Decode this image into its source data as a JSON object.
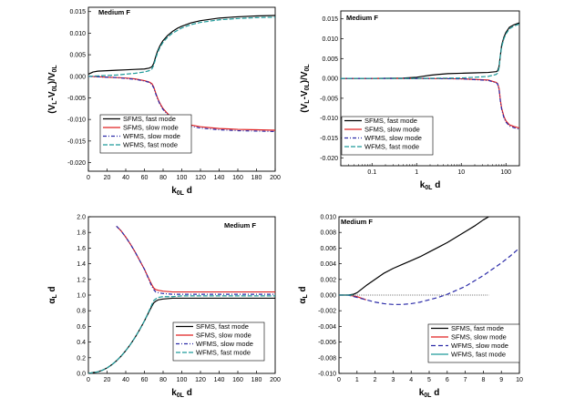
{
  "chart_data": [
    {
      "type": "line",
      "title": "Medium F",
      "ylabel": "(V_L-V_0L)/V_0L",
      "xlabel": "k_0L d",
      "xlim": [
        0,
        200
      ],
      "ylim": [
        -0.022,
        0.016
      ],
      "xscale": "linear",
      "xticks": [
        "0",
        "20",
        "40",
        "60",
        "80",
        "100",
        "120",
        "140",
        "160",
        "180",
        "200"
      ],
      "yticks": [
        "0.015",
        "0.010",
        "0.005",
        "0.000",
        "-0.005",
        "-0.010",
        "-0.015",
        "-0.020"
      ],
      "legend_position": "bottom-right",
      "series": [
        {
          "name": "SFMS, fast mode",
          "color": "#000000",
          "dash": "solid",
          "x": [
            0,
            5,
            10,
            20,
            30,
            40,
            50,
            60,
            65,
            68,
            70,
            72,
            74,
            76,
            78,
            80,
            85,
            90,
            95,
            100,
            110,
            120,
            140,
            160,
            180,
            200
          ],
          "y": [
            0.0005,
            0.001,
            0.0012,
            0.0013,
            0.0014,
            0.0015,
            0.0016,
            0.0017,
            0.0019,
            0.0022,
            0.003,
            0.0045,
            0.0058,
            0.0068,
            0.0076,
            0.0083,
            0.0095,
            0.0104,
            0.0111,
            0.0116,
            0.0124,
            0.0129,
            0.0135,
            0.0138,
            0.014,
            0.0141
          ]
        },
        {
          "name": "SFMS, slow mode",
          "color": "#e02020",
          "dash": "solid",
          "x": [
            0,
            10,
            20,
            30,
            40,
            50,
            60,
            65,
            68,
            70,
            72,
            74,
            76,
            78,
            80,
            85,
            90,
            100,
            110,
            120,
            140,
            160,
            180,
            200
          ],
          "y": [
            0.0,
            -0.0001,
            -0.0002,
            -0.0003,
            -0.0004,
            -0.0006,
            -0.001,
            -0.0013,
            -0.0017,
            -0.0025,
            -0.0038,
            -0.005,
            -0.006,
            -0.0068,
            -0.0075,
            -0.0087,
            -0.0096,
            -0.0107,
            -0.0113,
            -0.0117,
            -0.0121,
            -0.0123,
            -0.0124,
            -0.0125
          ]
        },
        {
          "name": "WFMS, slow mode",
          "color": "#2b2ba8",
          "dash": "4,2,1,2",
          "x": [
            0,
            10,
            20,
            30,
            40,
            50,
            60,
            65,
            68,
            70,
            72,
            74,
            76,
            78,
            80,
            85,
            90,
            100,
            110,
            120,
            140,
            160,
            180,
            200
          ],
          "y": [
            0.0,
            -0.0001,
            -0.0002,
            -0.0003,
            -0.0005,
            -0.0007,
            -0.0011,
            -0.0014,
            -0.0019,
            -0.0027,
            -0.004,
            -0.0052,
            -0.0062,
            -0.007,
            -0.0077,
            -0.0089,
            -0.0099,
            -0.011,
            -0.0116,
            -0.012,
            -0.0124,
            -0.0126,
            -0.0127,
            -0.0128
          ]
        },
        {
          "name": "WFMS, fast mode",
          "color": "#1f9a9a",
          "dash": "5,2",
          "x": [
            0,
            10,
            20,
            30,
            40,
            50,
            60,
            65,
            68,
            70,
            72,
            74,
            76,
            78,
            80,
            85,
            90,
            100,
            110,
            120,
            140,
            160,
            180,
            200
          ],
          "y": [
            0.0,
            0.0001,
            0.0002,
            0.0003,
            0.0005,
            0.0007,
            0.001,
            0.0013,
            0.0017,
            0.0026,
            0.0041,
            0.0054,
            0.0064,
            0.0072,
            0.0079,
            0.0091,
            0.01,
            0.0112,
            0.012,
            0.0125,
            0.0131,
            0.0134,
            0.0136,
            0.0137
          ]
        }
      ]
    },
    {
      "type": "line",
      "title": "Medium F",
      "ylabel": "(V_L-V_0L)/V_0L",
      "xlabel": "k_0L d",
      "xlim": [
        0.02,
        200
      ],
      "ylim": [
        -0.022,
        0.017
      ],
      "xscale": "log",
      "xticks": [
        "0.1",
        "1",
        "10",
        "100"
      ],
      "yticks": [
        "0.015",
        "0.010",
        "0.005",
        "0.000",
        "-0.005",
        "-0.010",
        "-0.015",
        "-0.020"
      ],
      "legend_position": "bottom-left",
      "series": [
        {
          "name": "SFMS, fast mode",
          "color": "#000000",
          "dash": "solid",
          "x": [
            0.02,
            0.1,
            0.5,
            1,
            2,
            3,
            5,
            10,
            20,
            40,
            60,
            65,
            70,
            75,
            80,
            90,
            100,
            120,
            150,
            200
          ],
          "y": [
            0.0,
            0.0,
            0.0001,
            0.0003,
            0.0008,
            0.001,
            0.0012,
            0.0013,
            0.0014,
            0.0015,
            0.0017,
            0.0019,
            0.003,
            0.0058,
            0.0083,
            0.0104,
            0.0116,
            0.0129,
            0.0135,
            0.014
          ]
        },
        {
          "name": "SFMS, slow mode",
          "color": "#e02020",
          "dash": "solid",
          "x": [
            0.02,
            0.1,
            1,
            10,
            40,
            60,
            65,
            70,
            75,
            80,
            90,
            100,
            120,
            150,
            200
          ],
          "y": [
            0.0,
            0.0,
            0.0,
            -0.0001,
            -0.0004,
            -0.001,
            -0.0013,
            -0.0025,
            -0.0055,
            -0.0075,
            -0.0096,
            -0.0107,
            -0.0117,
            -0.0121,
            -0.0125
          ]
        },
        {
          "name": "WFMS, slow mode",
          "color": "#2b2ba8",
          "dash": "4,2,1,2",
          "x": [
            0.02,
            0.1,
            1,
            10,
            40,
            60,
            65,
            70,
            75,
            80,
            90,
            100,
            120,
            150,
            200
          ],
          "y": [
            0.0,
            0.0,
            0.0,
            -0.0001,
            -0.0005,
            -0.0011,
            -0.0014,
            -0.0027,
            -0.0057,
            -0.0077,
            -0.0099,
            -0.011,
            -0.012,
            -0.0124,
            -0.0128
          ]
        },
        {
          "name": "WFMS, fast mode",
          "color": "#1f9a9a",
          "dash": "5,2",
          "x": [
            0.02,
            0.1,
            1,
            10,
            40,
            60,
            65,
            70,
            75,
            80,
            90,
            100,
            120,
            150,
            200
          ],
          "y": [
            0.0,
            0.0,
            0.0,
            0.0001,
            0.0005,
            0.001,
            0.0013,
            0.0026,
            0.0059,
            0.0079,
            0.01,
            0.0112,
            0.0125,
            0.0132,
            0.0137
          ]
        }
      ]
    },
    {
      "type": "line",
      "title": "Medium F",
      "ylabel": "α_L d",
      "xlabel": "k_0L d",
      "xlim": [
        0,
        200
      ],
      "ylim": [
        0,
        2.0
      ],
      "xscale": "linear",
      "xticks": [
        "0",
        "20",
        "40",
        "60",
        "80",
        "100",
        "120",
        "140",
        "160",
        "180",
        "200"
      ],
      "yticks": [
        "0.0",
        "0.2",
        "0.4",
        "0.6",
        "0.8",
        "1.0",
        "1.2",
        "1.4",
        "1.6",
        "1.8",
        "2.0"
      ],
      "legend_position": "bottom-right",
      "series": [
        {
          "name": "SFMS, fast mode",
          "color": "#000000",
          "dash": "solid",
          "x": [
            0,
            5,
            10,
            15,
            20,
            25,
            30,
            35,
            40,
            45,
            50,
            55,
            60,
            65,
            68,
            70,
            72,
            75,
            80,
            90,
            100,
            120,
            140,
            160,
            180,
            200
          ],
          "y": [
            0.0,
            0.01,
            0.02,
            0.04,
            0.07,
            0.11,
            0.16,
            0.22,
            0.29,
            0.37,
            0.46,
            0.56,
            0.67,
            0.79,
            0.86,
            0.9,
            0.92,
            0.94,
            0.95,
            0.96,
            0.96,
            0.96,
            0.96,
            0.96,
            0.96,
            0.96
          ]
        },
        {
          "name": "SFMS, slow mode",
          "color": "#e02020",
          "dash": "solid",
          "x": [
            30,
            35,
            40,
            45,
            50,
            55,
            60,
            65,
            68,
            70,
            72,
            75,
            80,
            90,
            100,
            120,
            140,
            160,
            180,
            200
          ],
          "y": [
            1.88,
            1.82,
            1.74,
            1.65,
            1.55,
            1.44,
            1.33,
            1.2,
            1.13,
            1.09,
            1.07,
            1.06,
            1.05,
            1.04,
            1.04,
            1.04,
            1.04,
            1.04,
            1.04,
            1.04
          ]
        },
        {
          "name": "WFMS, slow mode",
          "color": "#2b2ba8",
          "dash": "4,2,1,2",
          "x": [
            30,
            35,
            40,
            45,
            50,
            55,
            60,
            65,
            68,
            70,
            72,
            75,
            80,
            90,
            100,
            120,
            140,
            160,
            180,
            200
          ],
          "y": [
            1.88,
            1.82,
            1.74,
            1.65,
            1.55,
            1.44,
            1.33,
            1.19,
            1.11,
            1.07,
            1.04,
            1.03,
            1.02,
            1.01,
            1.01,
            1.01,
            1.01,
            1.01,
            1.01,
            1.01
          ]
        },
        {
          "name": "WFMS, fast mode",
          "color": "#1f9a9a",
          "dash": "5,2",
          "x": [
            0,
            5,
            10,
            15,
            20,
            25,
            30,
            35,
            40,
            45,
            50,
            55,
            60,
            65,
            68,
            70,
            72,
            75,
            80,
            90,
            100,
            120,
            140,
            160,
            180,
            200
          ],
          "y": [
            0.0,
            0.01,
            0.02,
            0.04,
            0.07,
            0.11,
            0.16,
            0.22,
            0.29,
            0.37,
            0.46,
            0.56,
            0.67,
            0.8,
            0.88,
            0.93,
            0.95,
            0.97,
            0.98,
            0.98,
            0.99,
            0.99,
            0.99,
            0.99,
            0.99,
            0.99
          ]
        }
      ]
    },
    {
      "type": "line",
      "title": "Medium F",
      "ylabel": "α_L d",
      "xlabel": "k_0L d",
      "xlim": [
        0,
        10
      ],
      "ylim": [
        -0.01,
        0.01
      ],
      "xscale": "linear",
      "xticks": [
        "0",
        "1",
        "2",
        "3",
        "4",
        "5",
        "6",
        "7",
        "8",
        "9",
        "10"
      ],
      "yticks": [
        "0.010",
        "0.008",
        "0.006",
        "0.004",
        "0.002",
        "0.000",
        "-0.002",
        "-0.004",
        "-0.006",
        "-0.008",
        "-0.010"
      ],
      "legend_position": "bottom-right",
      "reference_line": {
        "y": 0,
        "x": [
          0,
          8.3
        ]
      },
      "series": [
        {
          "name": "SFMS, fast mode",
          "color": "#000000",
          "dash": "solid",
          "x": [
            0,
            0.5,
            0.8,
            1.0,
            1.5,
            2.0,
            2.5,
            3.0,
            3.5,
            4.0,
            4.5,
            5.0,
            5.5,
            6.0,
            6.5,
            7.0,
            7.5,
            8.0,
            8.3
          ],
          "y": [
            0.0,
            0.0,
            0.0001,
            0.0003,
            0.0012,
            0.002,
            0.0028,
            0.0034,
            0.0039,
            0.0044,
            0.0049,
            0.0055,
            0.0061,
            0.0067,
            0.0074,
            0.0081,
            0.0088,
            0.0096,
            0.01
          ]
        },
        {
          "name": "SFMS, slow mode",
          "color": "#e02020",
          "dash": "solid",
          "x": [
            0,
            0.5,
            1.0,
            1.5
          ],
          "y": [
            0.0,
            0.0,
            -0.0002,
            -0.0006
          ]
        },
        {
          "name": "WFMS, slow mode",
          "color": "#2b2ba8",
          "dash": "5,3",
          "x": [
            0,
            0.5,
            1.0,
            1.5,
            2.0,
            2.5,
            3.0,
            3.5,
            4.0,
            4.5,
            5.0,
            5.5,
            6.0,
            6.5,
            7.0,
            7.5,
            8.0,
            8.5,
            9.0,
            9.5,
            9.9
          ],
          "y": [
            0.0,
            0.0,
            -0.0003,
            -0.0006,
            -0.0009,
            -0.0011,
            -0.0012,
            -0.0012,
            -0.0011,
            -0.0009,
            -0.0006,
            -0.0003,
            0.0001,
            0.0006,
            0.0011,
            0.0018,
            0.0025,
            0.0033,
            0.0041,
            0.005,
            0.0058
          ]
        },
        {
          "name": "WFMS, fast mode",
          "color": "#1f9a9a",
          "dash": "solid",
          "x": [
            0,
            0.5,
            0.8
          ],
          "y": [
            0.0,
            0.0,
            0.0
          ]
        }
      ]
    }
  ]
}
